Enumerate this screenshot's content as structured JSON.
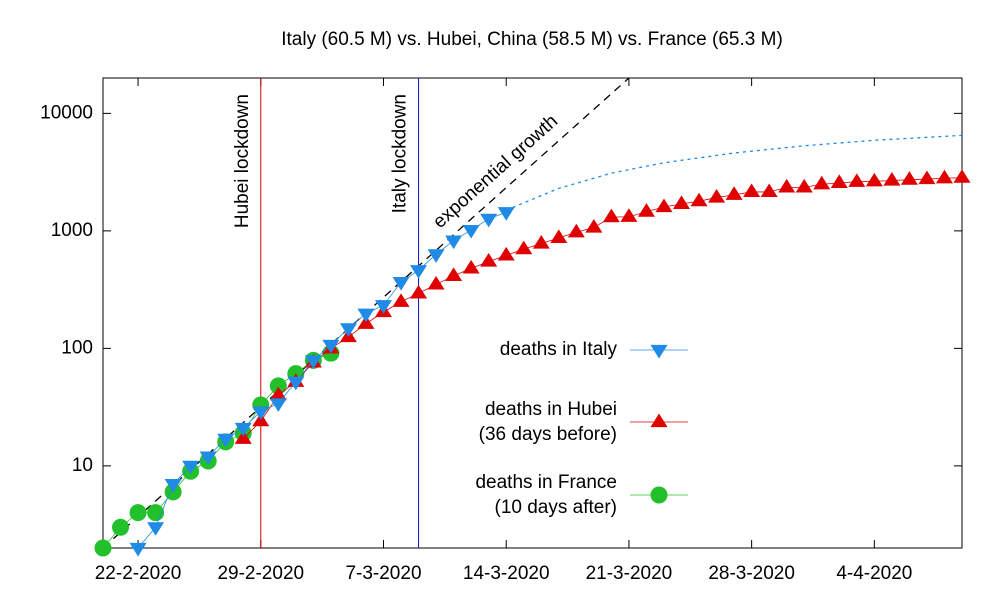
{
  "chart_data": {
    "type": "scatter",
    "title": "Italy (60.5 M) vs. Hubei, China (58.5 M) vs. France (65.3 M)",
    "log_y": true,
    "xlim": [
      "2020-02-20",
      "2020-04-09"
    ],
    "xticks": [
      {
        "value": "2020-02-22",
        "label": "22-2-2020"
      },
      {
        "value": "2020-02-29",
        "label": "29-2-2020"
      },
      {
        "value": "2020-03-07",
        "label": "7-3-2020"
      },
      {
        "value": "2020-03-14",
        "label": "14-3-2020"
      },
      {
        "value": "2020-03-21",
        "label": "21-3-2020"
      },
      {
        "value": "2020-03-28",
        "label": "28-3-2020"
      },
      {
        "value": "2020-04-04",
        "label": "4-4-2020"
      }
    ],
    "ylim": [
      2,
      20000
    ],
    "yticks": [
      10,
      100,
      1000,
      10000
    ],
    "legend": "right",
    "series": [
      {
        "name": "deaths in Italy",
        "marker": "triangle-down",
        "color": "#1f8be6",
        "start": "2020-02-22",
        "values": [
          2,
          3,
          7,
          10,
          12,
          17,
          21,
          29,
          34,
          52,
          79,
          107,
          148,
          197,
          233,
          366,
          463,
          631,
          827,
          1016,
          1266,
          1441
        ]
      },
      {
        "name": "deaths in Hubei",
        "note": "(36 days before)",
        "marker": "triangle-up",
        "color": "#e00000",
        "start": "2020-02-28",
        "values": [
          17,
          24,
          40,
          52,
          76,
          100,
          125,
          162,
          204,
          249,
          294,
          350,
          414,
          479,
          549,
          618,
          699,
          780,
          871,
          974,
          1068,
          1310,
          1318,
          1457,
          1596,
          1696,
          1789,
          1921,
          2029,
          2144,
          2144,
          2346,
          2346,
          2495,
          2563,
          2615,
          2641,
          2682,
          2727,
          2761,
          2803,
          2835
        ]
      },
      {
        "name": "deaths in France",
        "note": "(10 days after)",
        "marker": "circle",
        "color": "#22c02a",
        "start": "2020-02-20",
        "values": [
          2,
          3,
          4,
          4,
          6,
          9,
          11,
          16,
          19,
          33,
          48,
          61,
          79,
          91
        ]
      }
    ],
    "projection": {
      "color": "#1f8be6",
      "x": [
        "2020-03-14",
        "2020-03-17",
        "2020-03-20",
        "2020-03-23",
        "2020-03-27",
        "2020-03-31",
        "2020-04-04",
        "2020-04-09"
      ],
      "values": [
        1500,
        2300,
        3100,
        3800,
        4600,
        5300,
        5900,
        6500
      ]
    },
    "exponential_growth": {
      "label": "exponential growth",
      "x": [
        "2020-02-20",
        "2020-03-21"
      ],
      "values": [
        2,
        20000
      ]
    },
    "lockdowns": [
      {
        "label": "Hubei lockdown",
        "x": "2020-02-29",
        "color": "#e00000"
      },
      {
        "label": "Italy lockdown",
        "x": "2020-03-09",
        "color": "#1010c0"
      }
    ]
  }
}
